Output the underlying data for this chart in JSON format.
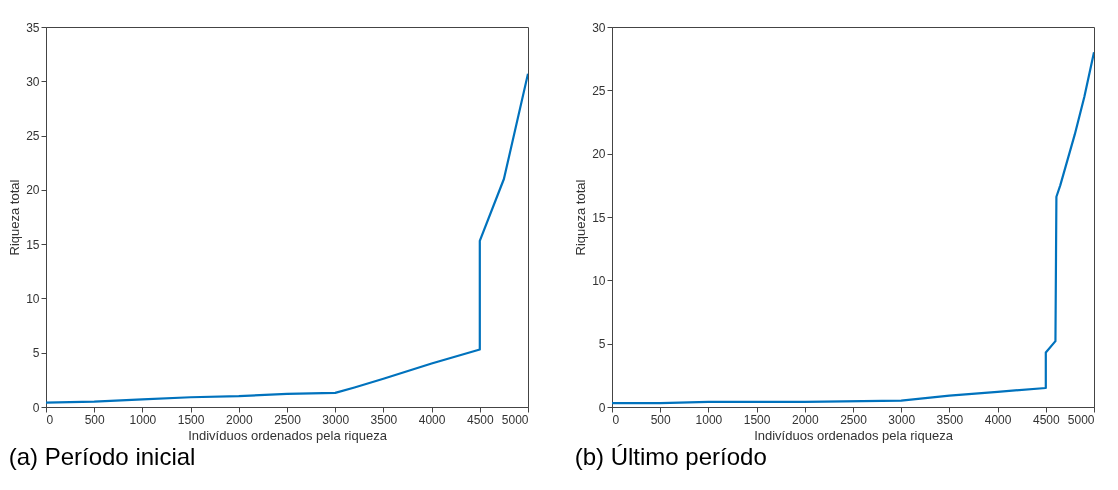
{
  "chart_data": [
    {
      "type": "line",
      "title": "(a) Período inicial",
      "xlabel": "Indivíduos ordenados pela riqueza",
      "ylabel": "Riqueza total",
      "xlim": [
        0,
        5000
      ],
      "xticks": [
        0,
        500,
        1000,
        1500,
        2000,
        2500,
        3000,
        3500,
        4000,
        4500,
        5000
      ],
      "ylim": [
        0,
        35
      ],
      "yticks": [
        0,
        5,
        10,
        15,
        20,
        25,
        30,
        35
      ],
      "grid": false,
      "series": [
        {
          "color": "#0072bd",
          "x": [
            0,
            500,
            1000,
            1500,
            2000,
            2500,
            3000,
            3200,
            3500,
            4000,
            4500,
            4500,
            4750,
            5000
          ],
          "values": [
            0.4,
            0.5,
            0.7,
            0.9,
            1.0,
            1.2,
            1.3,
            1.8,
            2.6,
            4.0,
            5.3,
            15.3,
            21,
            30.7
          ]
        }
      ]
    },
    {
      "type": "line",
      "title": "(b) Último período",
      "xlabel": "Indivíduos ordenados pela riqueza",
      "ylabel": "Riqueza total",
      "xlim": [
        0,
        5000
      ],
      "xticks": [
        0,
        500,
        1000,
        1500,
        2000,
        2500,
        3000,
        3500,
        4000,
        4500,
        5000
      ],
      "ylim": [
        0,
        30
      ],
      "yticks": [
        0,
        5,
        10,
        15,
        20,
        25,
        30
      ],
      "grid": false,
      "series": [
        {
          "color": "#0072bd",
          "x": [
            0,
            500,
            1000,
            2000,
            3000,
            3500,
            4000,
            4500,
            4500,
            4600,
            4610,
            4650,
            4800,
            4900,
            5000
          ],
          "values": [
            0.3,
            0.3,
            0.4,
            0.4,
            0.5,
            0.9,
            1.2,
            1.5,
            4.3,
            5.2,
            16.6,
            17.5,
            21.5,
            24.5,
            28
          ]
        }
      ]
    }
  ]
}
